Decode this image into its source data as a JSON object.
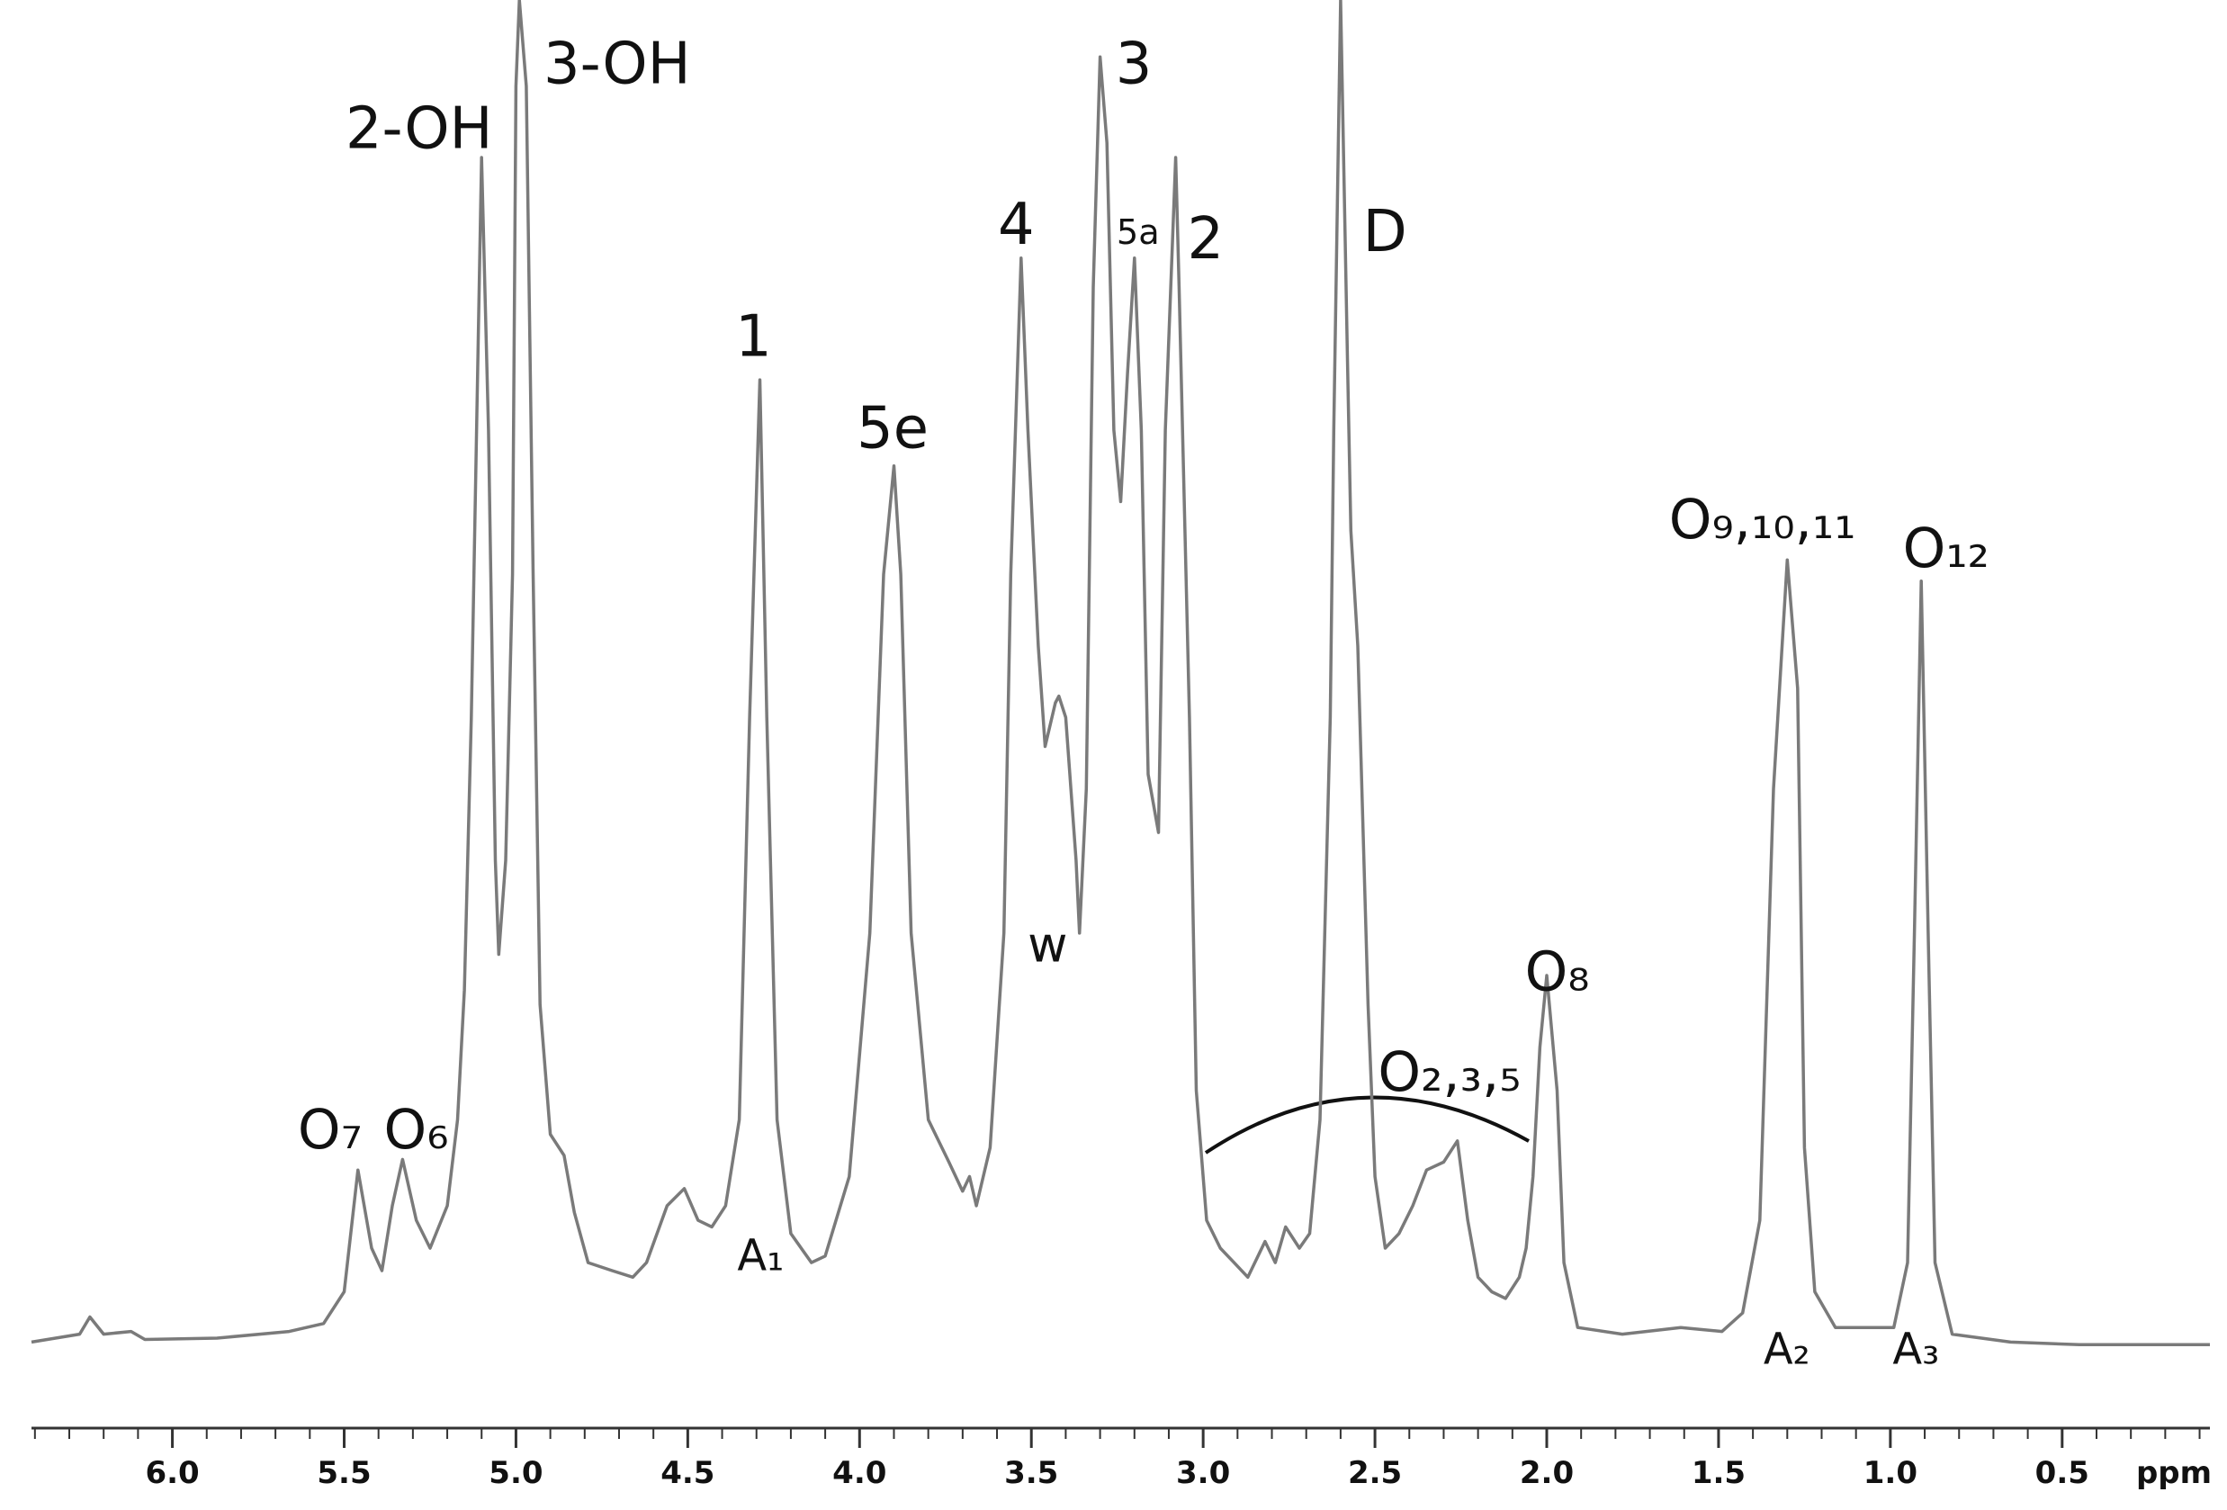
{
  "chart_data": {
    "type": "line",
    "x_label": "ppm",
    "xlim": [
      6.41,
      0.07
    ],
    "ylim": [
      -6.3,
      101.6
    ],
    "color": "#7a7a7a",
    "xticks": [
      {
        "value": 6,
        "label": "6.0"
      },
      {
        "value": 5.5,
        "label": "5.5"
      },
      {
        "value": 5,
        "label": "5.0"
      },
      {
        "value": 4.5,
        "label": "4.5"
      },
      {
        "value": 4,
        "label": "4.0"
      },
      {
        "value": 3.5,
        "label": "3.5"
      },
      {
        "value": 3,
        "label": "3.0"
      },
      {
        "value": 2.5,
        "label": "2.5"
      },
      {
        "value": 2,
        "label": "2.0"
      },
      {
        "value": 1.5,
        "label": "1.5"
      },
      {
        "value": 1,
        "label": "1.0"
      },
      {
        "value": 0.5,
        "label": "0.5"
      }
    ],
    "xminorticks": [
      6.4,
      6.3,
      6.2,
      6.1,
      5.9,
      5.8,
      5.7,
      5.6,
      5.4,
      5.3,
      5.2,
      5.1,
      4.9,
      4.8,
      4.7,
      4.6,
      4.4,
      4.3,
      4.2,
      4.1,
      3.9,
      3.8,
      3.7,
      3.6,
      3.4,
      3.3,
      3.2,
      3.1,
      2.9,
      2.8,
      2.7,
      2.6,
      2.4,
      2.3,
      2.2,
      2.1,
      1.9,
      1.8,
      1.7,
      1.6,
      1.4,
      1.3,
      1.2,
      1.1,
      0.9,
      0.8,
      0.7,
      0.6,
      0.4,
      0.3,
      0.2,
      0.1
    ],
    "x": [
      6.41,
      6.27,
      6.24,
      6.2,
      6.12,
      6.08,
      5.87,
      5.66,
      5.56,
      5.5,
      5.46,
      5.42,
      5.39,
      5.36,
      5.33,
      5.29,
      5.25,
      5.2,
      5.17,
      5.15,
      5.13,
      5.1,
      5.08,
      5.06,
      5.05,
      5.03,
      5.01,
      5.0,
      4.99,
      4.97,
      4.95,
      4.93,
      4.9,
      4.86,
      4.83,
      4.79,
      4.72,
      4.66,
      4.62,
      4.56,
      4.51,
      4.47,
      4.43,
      4.39,
      4.35,
      4.32,
      4.29,
      4.27,
      4.24,
      4.2,
      4.14,
      4.1,
      4.03,
      3.97,
      3.93,
      3.9,
      3.88,
      3.85,
      3.8,
      3.74,
      3.7,
      3.68,
      3.66,
      3.62,
      3.58,
      3.56,
      3.53,
      3.51,
      3.48,
      3.46,
      3.43,
      3.42,
      3.4,
      3.37,
      3.36,
      3.34,
      3.32,
      3.3,
      3.28,
      3.26,
      3.24,
      3.22,
      3.2,
      3.18,
      3.16,
      3.13,
      3.11,
      3.08,
      3.07,
      3.04,
      3.02,
      2.99,
      2.95,
      2.91,
      2.87,
      2.82,
      2.79,
      2.76,
      2.72,
      2.69,
      2.66,
      2.63,
      2.62,
      2.6,
      2.58,
      2.57,
      2.55,
      2.52,
      2.5,
      2.47,
      2.43,
      2.39,
      2.35,
      2.3,
      2.26,
      2.23,
      2.2,
      2.16,
      2.12,
      2.08,
      2.06,
      2.04,
      2.02,
      2.0,
      1.97,
      1.95,
      1.91,
      1.78,
      1.61,
      1.49,
      1.43,
      1.38,
      1.34,
      1.3,
      1.27,
      1.25,
      1.22,
      1.16,
      0.99,
      0.95,
      0.93,
      0.91,
      0.89,
      0.87,
      0.82,
      0.65,
      0.45,
      0.07
    ],
    "values": [
      0.2,
      0.8,
      2.1,
      0.8,
      1.0,
      0.4,
      0.5,
      1.0,
      1.6,
      4.0,
      13.2,
      7.3,
      5.6,
      10.5,
      14.0,
      9.4,
      7.3,
      10.5,
      17.0,
      26.8,
      47.4,
      89.7,
      69.1,
      36.6,
      29.5,
      36.6,
      58.2,
      95.1,
      101.6,
      95.1,
      58.2,
      25.7,
      15.9,
      14.3,
      10.0,
      6.2,
      5.6,
      5.1,
      6.2,
      10.5,
      11.8,
      9.4,
      8.9,
      10.5,
      17.0,
      47.4,
      72.9,
      47.4,
      17.0,
      8.4,
      6.2,
      6.7,
      12.7,
      31.1,
      58.2,
      66.4,
      58.2,
      31.1,
      17.0,
      13.8,
      11.6,
      12.7,
      10.5,
      14.9,
      31.1,
      58.2,
      82.1,
      69.1,
      52.8,
      45.2,
      48.5,
      49.0,
      47.4,
      36.6,
      31.1,
      42.0,
      79.9,
      97.3,
      90.8,
      69.1,
      63.7,
      73.4,
      82.1,
      69.1,
      43.1,
      38.7,
      69.1,
      89.7,
      79.9,
      47.4,
      19.2,
      9.4,
      7.3,
      6.2,
      5.1,
      7.8,
      6.2,
      8.9,
      7.3,
      8.4,
      17.0,
      47.4,
      69.1,
      101.6,
      74.5,
      61.5,
      52.8,
      25.7,
      12.7,
      7.3,
      8.4,
      10.5,
      13.2,
      13.8,
      15.4,
      9.4,
      5.1,
      4.0,
      3.5,
      5.1,
      7.3,
      12.7,
      22.5,
      27.9,
      19.2,
      6.2,
      1.3,
      0.8,
      1.3,
      1.0,
      2.4,
      9.4,
      42.0,
      59.3,
      49.6,
      14.9,
      4.0,
      1.3,
      1.3,
      6.2,
      31.1,
      57.7,
      31.1,
      6.2,
      0.8,
      0.2,
      0,
      0
    ],
    "annotations": [
      "2-OH",
      "3-OH",
      "1",
      "5e",
      "4",
      "3",
      "5a",
      "2",
      "D",
      "O₂,₃,₅",
      "O₈",
      "O₉,₁₀,₁₁",
      "O₁₂",
      "O₇",
      "O₆",
      "A₁",
      "w",
      "A₂",
      "A₃"
    ]
  }
}
